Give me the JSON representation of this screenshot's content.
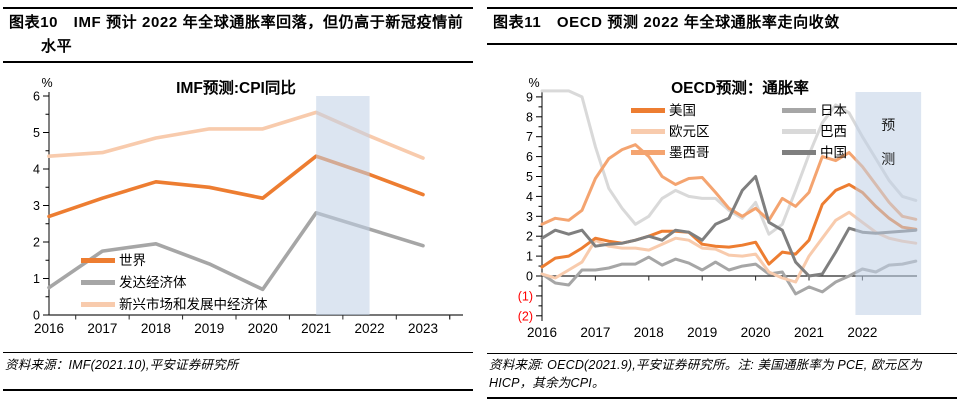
{
  "page": {
    "background": "#ffffff"
  },
  "panels": [
    {
      "header": "图表10　IMF 预计 2022 年全球通胀率回落，但仍高于新冠疫情前水平",
      "source": "资料来源：IMF(2021.10),平安证券研究所"
    },
    {
      "header": "图表11　OECD 预测 2022 年全球通胀率走向收敛",
      "source": "资料来源: OECD(2021.9),平安证券研究所。注: 美国通胀率为 PCE, 欧元区为HICP，其余为CPI。"
    }
  ],
  "chart_data": [
    {
      "type": "line",
      "title": "IMF预测:CPI同比",
      "y_unit": "%",
      "x_label_type": "year",
      "x": [
        2016,
        2017,
        2018,
        2019,
        2020,
        2021,
        2022,
        2023
      ],
      "ylim": [
        0,
        6
      ],
      "grid": false,
      "legend_position": "inside-bottom-left",
      "yticks": [
        {
          "v": 0,
          "label": "0"
        },
        {
          "v": 1,
          "label": "1"
        },
        {
          "v": 2,
          "label": "2"
        },
        {
          "v": 3,
          "label": "3"
        },
        {
          "v": 4,
          "label": "4"
        },
        {
          "v": 5,
          "label": "5"
        },
        {
          "v": 6,
          "label": "6"
        }
      ],
      "xticks": [
        {
          "v": 2016,
          "label": "2016"
        },
        {
          "v": 2017,
          "label": "2017"
        },
        {
          "v": 2018,
          "label": "2018"
        },
        {
          "v": 2019,
          "label": "2019"
        },
        {
          "v": 2020,
          "label": "2020"
        },
        {
          "v": 2021,
          "label": "2021"
        },
        {
          "v": 2022,
          "label": "2022"
        },
        {
          "v": 2023,
          "label": "2023"
        }
      ],
      "forecast_band": {
        "from": 2021,
        "to": 2022,
        "color": "#BFCFE5",
        "opacity": 0.55
      },
      "series": [
        {
          "name": "世界",
          "color": "#ED7D31",
          "values": [
            2.7,
            3.2,
            3.65,
            3.5,
            3.2,
            4.35,
            3.85,
            3.3
          ]
        },
        {
          "name": "发达经济体",
          "color": "#A6A6A6",
          "values": [
            0.75,
            1.75,
            1.95,
            1.4,
            0.7,
            2.8,
            2.35,
            1.9
          ]
        },
        {
          "name": "新兴市场和发展中经济体",
          "color": "#F8CBAD",
          "values": [
            4.35,
            4.45,
            4.85,
            5.1,
            5.1,
            5.55,
            4.9,
            4.3
          ]
        }
      ]
    },
    {
      "type": "line",
      "title": "OECD预测：通胀率",
      "y_unit": "%",
      "x_label_type": "quarterly-year",
      "x": [
        2016.0,
        2016.25,
        2016.5,
        2016.75,
        2017.0,
        2017.25,
        2017.5,
        2017.75,
        2018.0,
        2018.25,
        2018.5,
        2018.75,
        2019.0,
        2019.25,
        2019.5,
        2019.75,
        2020.0,
        2020.25,
        2020.5,
        2020.75,
        2021.0,
        2021.25,
        2021.5,
        2021.75,
        2022.0,
        2022.25,
        2022.5,
        2022.75,
        2023.0
      ],
      "ylim": [
        -2,
        9
      ],
      "grid": false,
      "legend_position": "inside-top-two-columns",
      "negative_label_color": "#FF0000",
      "yticks": [
        {
          "v": 9,
          "label": "9"
        },
        {
          "v": 8,
          "label": "8"
        },
        {
          "v": 7,
          "label": "7"
        },
        {
          "v": 6,
          "label": "6"
        },
        {
          "v": 5,
          "label": "5"
        },
        {
          "v": 4,
          "label": "4"
        },
        {
          "v": 3,
          "label": "3"
        },
        {
          "v": 2,
          "label": "2"
        },
        {
          "v": 1,
          "label": "1"
        },
        {
          "v": 0,
          "label": "0"
        },
        {
          "v": -1,
          "label": "(1)",
          "color": "#FF0000"
        },
        {
          "v": -2,
          "label": "(2)",
          "color": "#FF0000"
        }
      ],
      "xticks": [
        {
          "v": 2016,
          "label": "2016"
        },
        {
          "v": 2017,
          "label": "2017"
        },
        {
          "v": 2018,
          "label": "2018"
        },
        {
          "v": 2019,
          "label": "2019"
        },
        {
          "v": 2020,
          "label": "2020"
        },
        {
          "v": 2021,
          "label": "2021"
        },
        {
          "v": 2022,
          "label": "2022"
        }
      ],
      "forecast_band": {
        "from": 2021.87,
        "to": 2023.1,
        "label": "预测",
        "color": "#BFCFE5",
        "opacity": 0.55
      },
      "series": [
        {
          "name": "美国",
          "color": "#ED7D31",
          "values": [
            0.45,
            0.9,
            1.0,
            1.4,
            1.9,
            1.75,
            1.65,
            1.8,
            2.0,
            2.25,
            2.25,
            2.2,
            1.6,
            1.5,
            1.45,
            1.55,
            1.7,
            0.6,
            1.2,
            1.1,
            1.8,
            3.6,
            4.3,
            4.6,
            4.2,
            3.5,
            2.9,
            2.45,
            2.35
          ]
        },
        {
          "name": "欧元区",
          "color": "#F8CBAD",
          "values": [
            0.1,
            -0.1,
            0.3,
            0.7,
            1.8,
            1.5,
            1.4,
            1.4,
            1.3,
            1.6,
            1.9,
            1.8,
            1.4,
            1.35,
            1.05,
            1.0,
            1.1,
            0.2,
            -0.1,
            -0.3,
            1.0,
            1.9,
            2.8,
            3.2,
            2.7,
            2.2,
            1.9,
            1.75,
            1.65
          ]
        },
        {
          "name": "墨西哥",
          "color": "#F4A470",
          "values": [
            2.6,
            2.9,
            2.8,
            3.3,
            4.9,
            5.9,
            6.35,
            6.6,
            6.0,
            5.0,
            4.6,
            4.9,
            4.95,
            4.2,
            3.4,
            3.0,
            3.4,
            2.8,
            3.9,
            3.5,
            4.2,
            6.0,
            5.8,
            6.2,
            5.5,
            4.6,
            3.7,
            3.0,
            2.85
          ]
        },
        {
          "name": "日本",
          "color": "#A6A6A6",
          "values": [
            0.1,
            -0.35,
            -0.45,
            0.3,
            0.3,
            0.4,
            0.6,
            0.6,
            0.95,
            0.55,
            0.85,
            0.65,
            0.3,
            0.7,
            0.3,
            0.5,
            0.6,
            0.1,
            0.2,
            -0.9,
            -0.55,
            -0.8,
            -0.3,
            0.0,
            0.35,
            0.2,
            0.55,
            0.6,
            0.75
          ]
        },
        {
          "name": "巴西",
          "color": "#D9D9D9",
          "values": [
            9.3,
            9.3,
            9.3,
            9.0,
            6.5,
            4.4,
            3.4,
            2.6,
            3.0,
            3.9,
            4.3,
            4.0,
            3.9,
            3.9,
            3.3,
            2.9,
            3.7,
            2.1,
            2.6,
            4.3,
            6.1,
            7.7,
            8.6,
            8.2,
            7.0,
            5.9,
            4.8,
            4.0,
            3.8
          ]
        },
        {
          "name": "中国",
          "color": "#7F7F7F",
          "values": [
            1.9,
            2.3,
            2.1,
            2.3,
            1.5,
            1.6,
            1.65,
            1.8,
            2.0,
            1.8,
            2.3,
            2.2,
            1.8,
            2.6,
            2.9,
            4.3,
            5.0,
            2.7,
            2.3,
            0.7,
            0.0,
            0.1,
            1.2,
            2.4,
            2.2,
            2.15,
            2.2,
            2.25,
            2.3
          ]
        }
      ]
    }
  ]
}
